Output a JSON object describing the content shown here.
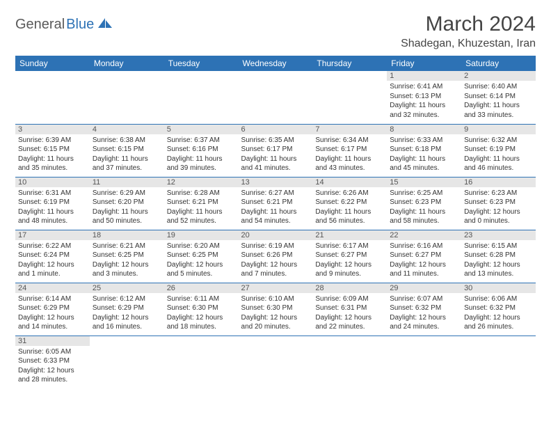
{
  "logo": {
    "text1": "General",
    "text2": "Blue"
  },
  "title": "March 2024",
  "location": "Shadegan, Khuzestan, Iran",
  "colors": {
    "header_bg": "#2d72b5",
    "header_fg": "#ffffff",
    "daynum_bg": "#e6e6e6",
    "border": "#2d72b5"
  },
  "day_headers": [
    "Sunday",
    "Monday",
    "Tuesday",
    "Wednesday",
    "Thursday",
    "Friday",
    "Saturday"
  ],
  "weeks": [
    [
      {
        "n": "",
        "empty": true
      },
      {
        "n": "",
        "empty": true
      },
      {
        "n": "",
        "empty": true
      },
      {
        "n": "",
        "empty": true
      },
      {
        "n": "",
        "empty": true
      },
      {
        "n": "1",
        "sr": "6:41 AM",
        "ss": "6:13 PM",
        "dl": "11 hours and 32 minutes."
      },
      {
        "n": "2",
        "sr": "6:40 AM",
        "ss": "6:14 PM",
        "dl": "11 hours and 33 minutes."
      }
    ],
    [
      {
        "n": "3",
        "sr": "6:39 AM",
        "ss": "6:15 PM",
        "dl": "11 hours and 35 minutes."
      },
      {
        "n": "4",
        "sr": "6:38 AM",
        "ss": "6:15 PM",
        "dl": "11 hours and 37 minutes."
      },
      {
        "n": "5",
        "sr": "6:37 AM",
        "ss": "6:16 PM",
        "dl": "11 hours and 39 minutes."
      },
      {
        "n": "6",
        "sr": "6:35 AM",
        "ss": "6:17 PM",
        "dl": "11 hours and 41 minutes."
      },
      {
        "n": "7",
        "sr": "6:34 AM",
        "ss": "6:17 PM",
        "dl": "11 hours and 43 minutes."
      },
      {
        "n": "8",
        "sr": "6:33 AM",
        "ss": "6:18 PM",
        "dl": "11 hours and 45 minutes."
      },
      {
        "n": "9",
        "sr": "6:32 AM",
        "ss": "6:19 PM",
        "dl": "11 hours and 46 minutes."
      }
    ],
    [
      {
        "n": "10",
        "sr": "6:31 AM",
        "ss": "6:19 PM",
        "dl": "11 hours and 48 minutes."
      },
      {
        "n": "11",
        "sr": "6:29 AM",
        "ss": "6:20 PM",
        "dl": "11 hours and 50 minutes."
      },
      {
        "n": "12",
        "sr": "6:28 AM",
        "ss": "6:21 PM",
        "dl": "11 hours and 52 minutes."
      },
      {
        "n": "13",
        "sr": "6:27 AM",
        "ss": "6:21 PM",
        "dl": "11 hours and 54 minutes."
      },
      {
        "n": "14",
        "sr": "6:26 AM",
        "ss": "6:22 PM",
        "dl": "11 hours and 56 minutes."
      },
      {
        "n": "15",
        "sr": "6:25 AM",
        "ss": "6:23 PM",
        "dl": "11 hours and 58 minutes."
      },
      {
        "n": "16",
        "sr": "6:23 AM",
        "ss": "6:23 PM",
        "dl": "12 hours and 0 minutes."
      }
    ],
    [
      {
        "n": "17",
        "sr": "6:22 AM",
        "ss": "6:24 PM",
        "dl": "12 hours and 1 minute."
      },
      {
        "n": "18",
        "sr": "6:21 AM",
        "ss": "6:25 PM",
        "dl": "12 hours and 3 minutes."
      },
      {
        "n": "19",
        "sr": "6:20 AM",
        "ss": "6:25 PM",
        "dl": "12 hours and 5 minutes."
      },
      {
        "n": "20",
        "sr": "6:19 AM",
        "ss": "6:26 PM",
        "dl": "12 hours and 7 minutes."
      },
      {
        "n": "21",
        "sr": "6:17 AM",
        "ss": "6:27 PM",
        "dl": "12 hours and 9 minutes."
      },
      {
        "n": "22",
        "sr": "6:16 AM",
        "ss": "6:27 PM",
        "dl": "12 hours and 11 minutes."
      },
      {
        "n": "23",
        "sr": "6:15 AM",
        "ss": "6:28 PM",
        "dl": "12 hours and 13 minutes."
      }
    ],
    [
      {
        "n": "24",
        "sr": "6:14 AM",
        "ss": "6:29 PM",
        "dl": "12 hours and 14 minutes."
      },
      {
        "n": "25",
        "sr": "6:12 AM",
        "ss": "6:29 PM",
        "dl": "12 hours and 16 minutes."
      },
      {
        "n": "26",
        "sr": "6:11 AM",
        "ss": "6:30 PM",
        "dl": "12 hours and 18 minutes."
      },
      {
        "n": "27",
        "sr": "6:10 AM",
        "ss": "6:30 PM",
        "dl": "12 hours and 20 minutes."
      },
      {
        "n": "28",
        "sr": "6:09 AM",
        "ss": "6:31 PM",
        "dl": "12 hours and 22 minutes."
      },
      {
        "n": "29",
        "sr": "6:07 AM",
        "ss": "6:32 PM",
        "dl": "12 hours and 24 minutes."
      },
      {
        "n": "30",
        "sr": "6:06 AM",
        "ss": "6:32 PM",
        "dl": "12 hours and 26 minutes."
      }
    ],
    [
      {
        "n": "31",
        "sr": "6:05 AM",
        "ss": "6:33 PM",
        "dl": "12 hours and 28 minutes."
      },
      {
        "n": "",
        "empty": true
      },
      {
        "n": "",
        "empty": true
      },
      {
        "n": "",
        "empty": true
      },
      {
        "n": "",
        "empty": true
      },
      {
        "n": "",
        "empty": true
      },
      {
        "n": "",
        "empty": true
      }
    ]
  ],
  "labels": {
    "sunrise": "Sunrise:",
    "sunset": "Sunset:",
    "daylight": "Daylight:"
  }
}
